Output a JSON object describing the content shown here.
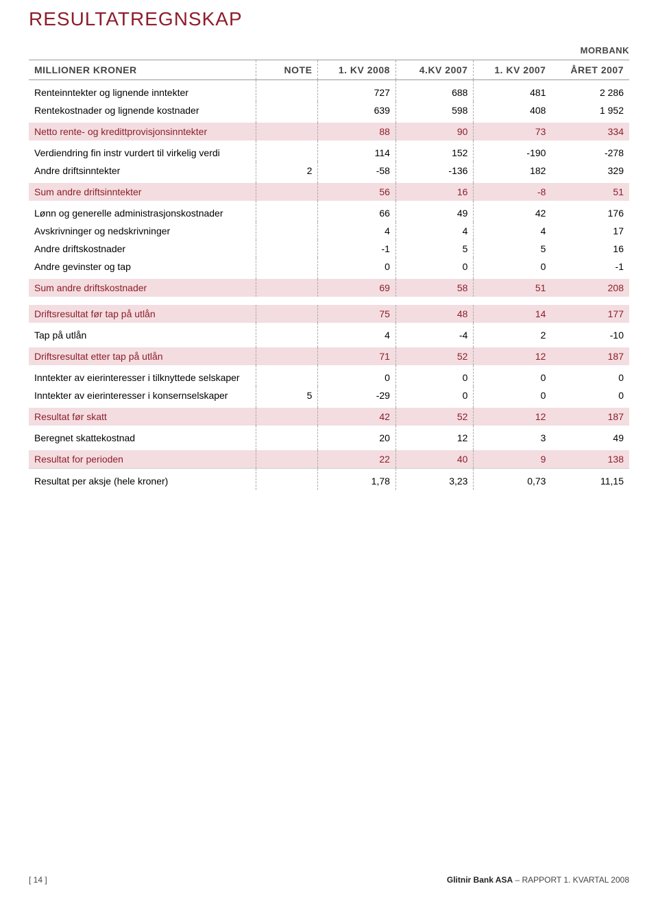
{
  "title": "RESULTATREGNSKAP",
  "title_color": "#8e1d2b",
  "title_fontsize": "28px",
  "subheader": "MORBANK",
  "subheader_color": "#444444",
  "header_color": "#444444",
  "highlight_row_bg": "#f3dde0",
  "highlight_row_color": "#8e1d2b",
  "col_headers": {
    "label": "MILLIONER KRONER",
    "note": "NOTE",
    "c1": "1. KV 2008",
    "c2": "4.KV 2007",
    "c3": "1. KV 2007",
    "c4": "ÅRET 2007"
  },
  "rows": [
    {
      "id": "r1",
      "label": "Renteinntekter og lignende inntekter",
      "note": "",
      "c1": "727",
      "c2": "688",
      "c3": "481",
      "c4": "2 286",
      "hl": false,
      "sp": true
    },
    {
      "id": "r2",
      "label": "Rentekostnader og lignende kostnader",
      "note": "",
      "c1": "639",
      "c2": "598",
      "c3": "408",
      "c4": "1 952",
      "hl": false,
      "sp_bot": true
    },
    {
      "id": "r3",
      "label": "Netto rente- og kredittprovisjonsinntekter",
      "note": "",
      "c1": "88",
      "c2": "90",
      "c3": "73",
      "c4": "334",
      "hl": true
    },
    {
      "id": "r4",
      "label": "Verdiendring fin instr vurdert til virkelig verdi",
      "note": "",
      "c1": "114",
      "c2": "152",
      "c3": "-190",
      "c4": "-278",
      "hl": false,
      "sp": true
    },
    {
      "id": "r5",
      "label": "Andre driftsinntekter",
      "note": "2",
      "c1": "-58",
      "c2": "-136",
      "c3": "182",
      "c4": "329",
      "hl": false,
      "sp_bot": true
    },
    {
      "id": "r6",
      "label": "Sum andre driftsinntekter",
      "note": "",
      "c1": "56",
      "c2": "16",
      "c3": "-8",
      "c4": "51",
      "hl": true
    },
    {
      "id": "r7",
      "label": "Lønn og generelle administrasjonskostnader",
      "note": "",
      "c1": "66",
      "c2": "49",
      "c3": "42",
      "c4": "176",
      "hl": false,
      "sp": true
    },
    {
      "id": "r8",
      "label": "Avskrivninger og nedskrivninger",
      "note": "",
      "c1": "4",
      "c2": "4",
      "c3": "4",
      "c4": "17",
      "hl": false
    },
    {
      "id": "r9",
      "label": "Andre driftskostnader",
      "note": "",
      "c1": "-1",
      "c2": "5",
      "c3": "5",
      "c4": "16",
      "hl": false
    },
    {
      "id": "r10",
      "label": "Andre gevinster og tap",
      "note": "",
      "c1": "0",
      "c2": "0",
      "c3": "0",
      "c4": "-1",
      "hl": false,
      "sp_bot": true
    },
    {
      "id": "r11",
      "label": "Sum andre driftskostnader",
      "note": "",
      "c1": "69",
      "c2": "58",
      "c3": "51",
      "c4": "208",
      "hl": true
    },
    {
      "id": "r12",
      "label": "Driftsresultat før tap på utlån",
      "note": "",
      "c1": "75",
      "c2": "48",
      "c3": "14",
      "c4": "177",
      "hl": true,
      "gap": true
    },
    {
      "id": "r13",
      "label": "Tap på utlån",
      "note": "",
      "c1": "4",
      "c2": "-4",
      "c3": "2",
      "c4": "-10",
      "hl": false,
      "sp": true,
      "sp_bot": true
    },
    {
      "id": "r14",
      "label": "Driftsresultat etter tap på utlån",
      "note": "",
      "c1": "71",
      "c2": "52",
      "c3": "12",
      "c4": "187",
      "hl": true
    },
    {
      "id": "r15",
      "label": "Inntekter av eierinteresser i tilknyttede selskaper",
      "note": "",
      "c1": "0",
      "c2": "0",
      "c3": "0",
      "c4": "0",
      "hl": false,
      "sp": true
    },
    {
      "id": "r16",
      "label": "Inntekter av eierinteresser i konsernselskaper",
      "note": "5",
      "c1": "-29",
      "c2": "0",
      "c3": "0",
      "c4": "0",
      "hl": false,
      "sp_bot": true
    },
    {
      "id": "r17",
      "label": "Resultat før skatt",
      "note": "",
      "c1": "42",
      "c2": "52",
      "c3": "12",
      "c4": "187",
      "hl": true
    },
    {
      "id": "r18",
      "label": "Beregnet skattekostnad",
      "note": "",
      "c1": "20",
      "c2": "12",
      "c3": "3",
      "c4": "49",
      "hl": false,
      "sp": true,
      "sp_bot": true
    },
    {
      "id": "r19",
      "label": "Resultat for perioden",
      "note": "",
      "c1": "22",
      "c2": "40",
      "c3": "9",
      "c4": "138",
      "hl": true
    },
    {
      "id": "r20",
      "label": "Resultat per aksje (hele kroner)",
      "note": "",
      "c1": "1,78",
      "c2": "3,23",
      "c3": "0,73",
      "c4": "11,15",
      "hl": false,
      "sp": true,
      "bt": true
    }
  ],
  "footer": {
    "left": "[ 14 ]",
    "right_bold": "Glitnir Bank ASA",
    "right_rest": " – RAPPORT 1. KVARTAL 2008"
  }
}
